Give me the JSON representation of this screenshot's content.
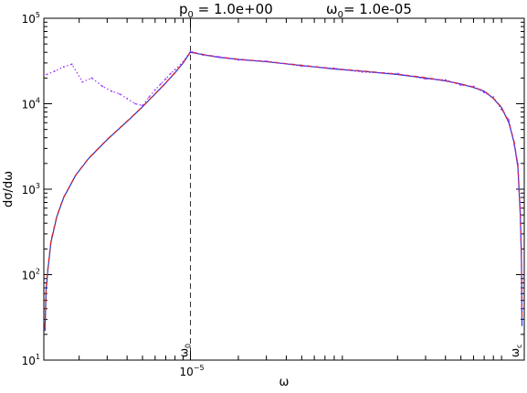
{
  "chart_data": {
    "type": "line",
    "title_parts": {
      "p0_sym": "p",
      "p0_sub": "0",
      "p0_val": " = 1.0e+00",
      "w0_sym": "ω",
      "w0_sub": "0",
      "w0_val": "= 1.0e-05"
    },
    "xlabel": "ω",
    "ylabel": "dσ/dω",
    "xscale": "log",
    "yscale": "log",
    "xlim": [
      1.2e-06,
      0.00125
    ],
    "ylim": [
      10,
      100000
    ],
    "x_ticks": [
      {
        "value": 1e-05,
        "base": "10",
        "exp": "−5"
      }
    ],
    "y_ticks": [
      {
        "value": 10,
        "base": "10",
        "exp": "1"
      },
      {
        "value": 100,
        "base": "10",
        "exp": "2"
      },
      {
        "value": 1000,
        "base": "10",
        "exp": "3"
      },
      {
        "value": 10000,
        "base": "10",
        "exp": "4"
      },
      {
        "value": 100000,
        "base": "10",
        "exp": "5"
      }
    ],
    "annotations": [
      {
        "sym": "ω",
        "sub": "0",
        "x": 1e-05
      },
      {
        "sym": "ω",
        "sub": "c",
        "x": 0.0012
      }
    ],
    "series": [
      {
        "style": "solid",
        "color": "#2233cc",
        "points": [
          [
            1.22e-06,
            22
          ],
          [
            1.24e-06,
            65
          ],
          [
            1.27e-06,
            110
          ],
          [
            1.33e-06,
            240
          ],
          [
            1.45e-06,
            480
          ],
          [
            1.6e-06,
            800
          ],
          [
            1.9e-06,
            1450
          ],
          [
            2.3e-06,
            2300
          ],
          [
            3e-06,
            3800
          ],
          [
            4e-06,
            6200
          ],
          [
            5e-06,
            9200
          ],
          [
            6e-06,
            13000
          ],
          [
            7e-06,
            17500
          ],
          [
            8e-06,
            23000
          ],
          [
            9e-06,
            30000
          ],
          [
            1e-05,
            40000
          ],
          [
            1.2e-05,
            37500
          ],
          [
            1.5e-05,
            35000
          ],
          [
            2e-05,
            33000
          ],
          [
            3e-05,
            31000
          ],
          [
            5e-05,
            28000
          ],
          [
            8e-05,
            25500
          ],
          [
            0.00012,
            24000
          ],
          [
            0.0002,
            22000
          ],
          [
            0.0003,
            20000
          ],
          [
            0.0004,
            18500
          ],
          [
            0.0005,
            17000
          ],
          [
            0.0006,
            15500
          ],
          [
            0.0007,
            14000
          ],
          [
            0.0008,
            11500
          ],
          [
            0.0009,
            9000
          ],
          [
            0.001,
            6000
          ],
          [
            0.00108,
            3500
          ],
          [
            0.00114,
            1800
          ],
          [
            0.00118,
            500
          ],
          [
            0.0012,
            150
          ],
          [
            0.00121,
            25
          ]
        ]
      },
      {
        "style": "dashed",
        "color": "#dd2222",
        "points": [
          [
            1.22e-06,
            24
          ],
          [
            1.24e-06,
            70
          ],
          [
            1.27e-06,
            115
          ],
          [
            1.33e-06,
            250
          ],
          [
            1.45e-06,
            490
          ],
          [
            1.6e-06,
            810
          ],
          [
            1.9e-06,
            1460
          ],
          [
            2.3e-06,
            2320
          ],
          [
            3e-06,
            3830
          ],
          [
            4e-06,
            6250
          ],
          [
            5e-06,
            9250
          ],
          [
            6e-06,
            13100
          ],
          [
            7e-06,
            17600
          ],
          [
            8e-06,
            23200
          ],
          [
            9e-06,
            30200
          ],
          [
            1e-05,
            40500
          ],
          [
            1.2e-05,
            37800
          ],
          [
            1.5e-05,
            35300
          ],
          [
            2e-05,
            33200
          ],
          [
            3e-05,
            31200
          ],
          [
            5e-05,
            28200
          ],
          [
            8e-05,
            25700
          ],
          [
            0.00012,
            24200
          ],
          [
            0.0002,
            22200
          ],
          [
            0.0003,
            20200
          ],
          [
            0.0004,
            18600
          ],
          [
            0.0005,
            17100
          ],
          [
            0.0006,
            15600
          ],
          [
            0.0007,
            14100
          ],
          [
            0.0008,
            11600
          ],
          [
            0.0009,
            9100
          ],
          [
            0.001,
            6100
          ],
          [
            0.00108,
            3600
          ],
          [
            0.00114,
            1900
          ],
          [
            0.00118,
            520
          ],
          [
            0.0012,
            160
          ],
          [
            0.00121,
            30
          ]
        ]
      },
      {
        "style": "dotted",
        "color": "#9933ff",
        "points": [
          [
            1.25e-06,
            22000
          ],
          [
            1.4e-06,
            24000
          ],
          [
            1.6e-06,
            27000
          ],
          [
            1.8e-06,
            29000
          ],
          [
            2.1e-06,
            18000
          ],
          [
            2.4e-06,
            20000
          ],
          [
            2.8e-06,
            16000
          ],
          [
            3.2e-06,
            14000
          ],
          [
            3.6e-06,
            13000
          ],
          [
            4e-06,
            11500
          ],
          [
            4.5e-06,
            10000
          ],
          [
            5e-06,
            9500
          ],
          [
            5.5e-06,
            12000
          ],
          [
            6e-06,
            14500
          ],
          [
            6.5e-06,
            17000
          ],
          [
            7e-06,
            19500
          ],
          [
            7.5e-06,
            22500
          ],
          [
            8e-06,
            25000
          ],
          [
            9e-06,
            31000
          ],
          [
            1e-05,
            41000
          ],
          [
            1.2e-05,
            37000
          ],
          [
            1.5e-05,
            35500
          ],
          [
            2e-05,
            32500
          ],
          [
            3e-05,
            31500
          ],
          [
            5e-05,
            27500
          ],
          [
            8e-05,
            26000
          ],
          [
            0.00012,
            23500
          ],
          [
            0.0002,
            22500
          ],
          [
            0.0003,
            19500
          ],
          [
            0.0004,
            19000
          ],
          [
            0.0005,
            16500
          ],
          [
            0.0006,
            16000
          ],
          [
            0.0007,
            13500
          ],
          [
            0.0008,
            12000
          ],
          [
            0.0009,
            8500
          ],
          [
            0.001,
            6500
          ],
          [
            0.00108,
            3300
          ],
          [
            0.00114,
            2000
          ],
          [
            0.00118,
            600
          ],
          [
            0.0012,
            180
          ],
          [
            0.00121,
            40
          ]
        ]
      }
    ]
  }
}
